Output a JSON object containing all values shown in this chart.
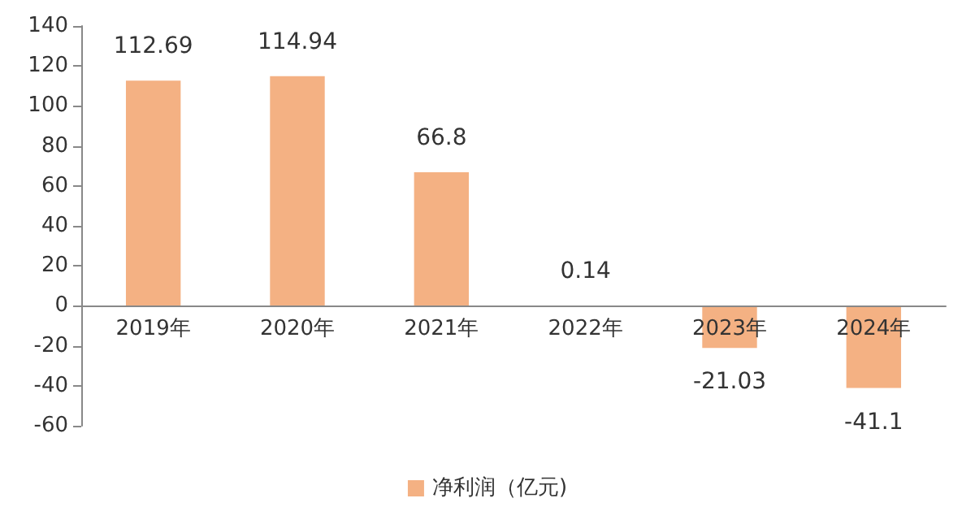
{
  "chart_data": {
    "type": "bar",
    "categories": [
      "2019年",
      "2020年",
      "2021年",
      "2022年",
      "2023年",
      "2024年"
    ],
    "series": [
      {
        "name": "净利润（亿元)",
        "color": "#f4b183",
        "values": [
          112.69,
          114.94,
          66.8,
          0.14,
          -21.03,
          -41.1
        ]
      }
    ],
    "ylim": [
      -60,
      140
    ],
    "yticks": [
      -60,
      -40,
      -20,
      0,
      20,
      40,
      60,
      80,
      100,
      120,
      140
    ],
    "grid": false,
    "legend": "bottom",
    "data_labels": true
  }
}
